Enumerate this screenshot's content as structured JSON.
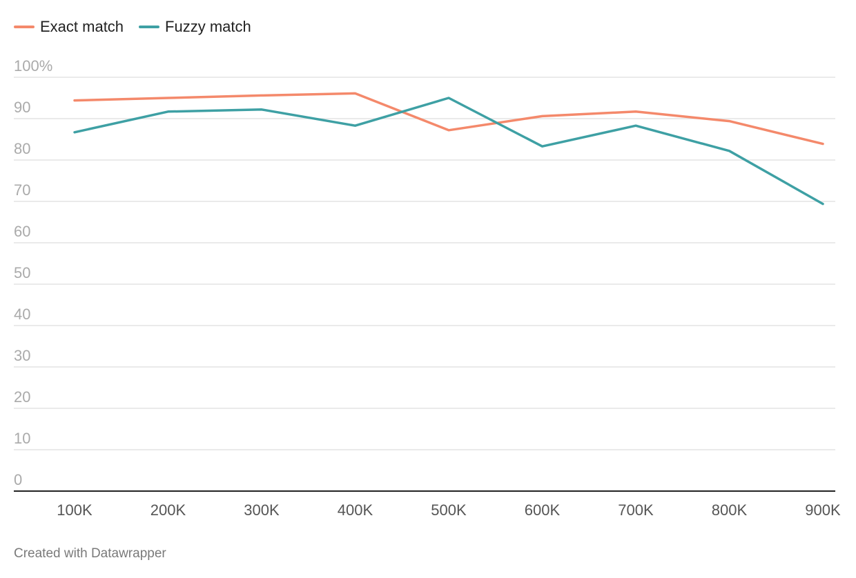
{
  "chart_data": {
    "type": "line",
    "x": [
      "100K",
      "200K",
      "300K",
      "400K",
      "500K",
      "600K",
      "700K",
      "800K",
      "900K"
    ],
    "series": [
      {
        "name": "Exact match",
        "color": "#f4896b",
        "values": [
          94.4,
          95.0,
          95.6,
          96.1,
          87.2,
          90.6,
          91.7,
          89.4,
          83.9
        ]
      },
      {
        "name": "Fuzzy match",
        "color": "#3ea0a4",
        "values": [
          86.7,
          91.7,
          92.2,
          88.3,
          95.0,
          83.3,
          88.3,
          82.2,
          69.4
        ]
      }
    ],
    "y_ticks": [
      "0",
      "10",
      "20",
      "30",
      "40",
      "50",
      "60",
      "70",
      "80",
      "90",
      "100%"
    ],
    "ylim": [
      0,
      100
    ],
    "grid": true,
    "legend_position": "top-left"
  },
  "legend": {
    "exact_label": "Exact match",
    "fuzzy_label": "Fuzzy match"
  },
  "footer": {
    "credit": "Created with Datawrapper"
  }
}
